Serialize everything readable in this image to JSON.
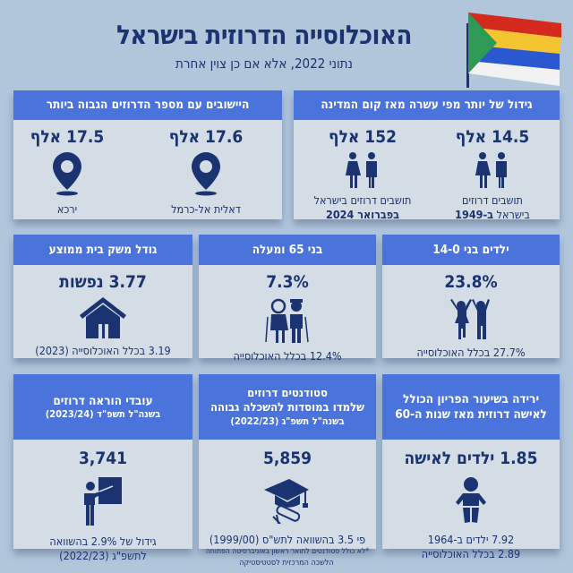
{
  "header": {
    "title": "האוכלוסייה הדרוזית בישראל",
    "subtitle": "נתוני 2022, אלא אם כן צוין אחרת",
    "flag_colors": [
      "#d42a1e",
      "#f4c531",
      "#2b58d1",
      "#f2f2f2",
      "#2e9a55"
    ]
  },
  "colors": {
    "background": "#b1c5db",
    "card_header": "#4a74dc",
    "card_body": "#d4dce6",
    "text": "#1b3370"
  },
  "growth": {
    "title": "גידול של יותר מפי עשרה מאז קום המדינה",
    "items": [
      {
        "value": "14.5 אלף",
        "icon": "man-woman-icon",
        "line1": "תושבים דרוזים",
        "line2a": "בישראל ",
        "line2b": "ב-1949"
      },
      {
        "value": "152 אלף",
        "icon": "man-woman-icon",
        "line1": "תושבים דרוזים בישראל",
        "line2b": "בפברואר 2024"
      }
    ]
  },
  "localities": {
    "title": "היישובים עם מספר הדרוזים הגבוה ביותר",
    "items": [
      {
        "value": "17.6 אלף",
        "icon": "map-pin-icon",
        "name": "דאלית אל-כרמל"
      },
      {
        "value": "17.5 אלף",
        "icon": "map-pin-icon",
        "name": "ירכא"
      }
    ]
  },
  "children": {
    "title": "ילדים בני 14-0",
    "value": "23.8%",
    "icon": "children-icon",
    "note": "27.7% בכלל האוכלוסייה"
  },
  "elderly": {
    "title": "בני 65 ומעלה",
    "value": "7.3%",
    "icon": "elderly-couple-icon",
    "note": "12.4% בכלל האוכלוסייה"
  },
  "household": {
    "title": "גודל משק בית ממוצע",
    "value": "3.77 נפשות",
    "icon": "house-icon",
    "note": "3.19 בכלל האוכלוסייה (2023)"
  },
  "fertility": {
    "title1": "ירידה בשיעור הפריון הכולל",
    "title2": "לאישה דרוזית מאז שנות ה-60",
    "value": "1.85 ילדים לאישה",
    "icon": "baby-icon",
    "note1": "7.92 ילדים ב-1964",
    "note2": "2.89 בכלל האוכלוסייה"
  },
  "students": {
    "title1": "סטודנטים דרוזים",
    "title2": "שלמדו במוסדות להשכלה גבוהה",
    "title3": "בשנה\"ל תשפ\"ג (2022/23)",
    "value": "5,859",
    "icon": "graduation-cap-icon",
    "note": "פי 3.5 בהשוואה לתש\"ס (1999/00)",
    "footnote": "*לא כולל סטודנטים לתואר ראשון באוניברסיטה הפתוחה"
  },
  "teachers": {
    "title1": "עובדי הוראה דרוזים",
    "title2": "בשנה\"ל תשפ\"ד (2023/24)",
    "value": "3,741",
    "icon": "teacher-icon",
    "note1": "גידול של 2.9% בהשוואה",
    "note2": "לתשפ\"ג (2022/23)"
  },
  "footer": {
    "source": "הלשכה המרכזית לסטטיסטיקה"
  }
}
